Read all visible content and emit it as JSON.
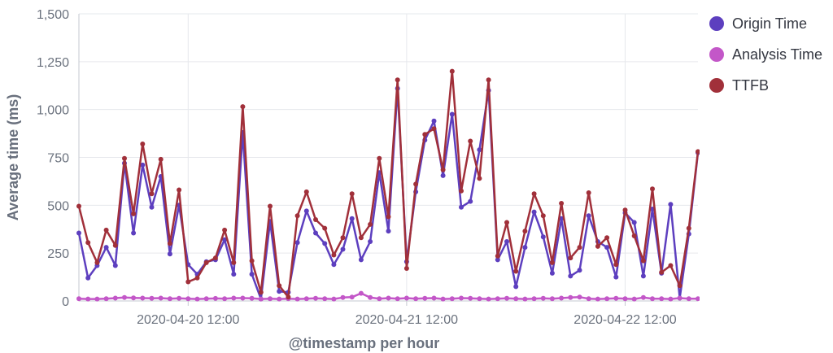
{
  "chart_data": {
    "type": "line",
    "xlabel": "@timestamp per hour",
    "ylabel": "Average time (ms)",
    "ylim": [
      0,
      1500
    ],
    "yticks": [
      0,
      250,
      500,
      750,
      1000,
      1250,
      1500
    ],
    "ytick_labels": [
      "0",
      "250",
      "500",
      "750",
      "1,000",
      "1,250",
      "1,500"
    ],
    "xrange": [
      0,
      85
    ],
    "xticks": [
      {
        "x": 15,
        "label": "2020-04-20 12:00"
      },
      {
        "x": 45,
        "label": "2020-04-21 12:00"
      },
      {
        "x": 75,
        "label": "2020-04-22 12:00"
      }
    ],
    "legend_position": "right",
    "series": [
      {
        "name": "Origin Time",
        "color": "#5d3fbf",
        "values": [
          355,
          120,
          185,
          280,
          185,
          720,
          355,
          710,
          490,
          650,
          245,
          500,
          190,
          140,
          205,
          215,
          320,
          140,
          880,
          140,
          10,
          415,
          50,
          45,
          305,
          470,
          355,
          300,
          190,
          270,
          430,
          215,
          310,
          670,
          365,
          1110,
          205,
          570,
          840,
          940,
          655,
          975,
          490,
          520,
          790,
          1100,
          215,
          310,
          75,
          280,
          465,
          335,
          145,
          430,
          130,
          160,
          445,
          310,
          280,
          125,
          460,
          410,
          130,
          480,
          145,
          505,
          15,
          350,
          775
        ]
      },
      {
        "name": "Analysis Time",
        "color": "#c357c8",
        "values": [
          12,
          10,
          10,
          12,
          15,
          18,
          16,
          15,
          14,
          15,
          12,
          14,
          12,
          10,
          12,
          13,
          12,
          15,
          15,
          14,
          10,
          12,
          10,
          12,
          10,
          12,
          14,
          12,
          10,
          18,
          20,
          40,
          18,
          12,
          15,
          12,
          15,
          12,
          14,
          15,
          10,
          12,
          15,
          14,
          12,
          10,
          12,
          14,
          12,
          10,
          12,
          14,
          12,
          15,
          18,
          20,
          12,
          10,
          12,
          14,
          12,
          10,
          18,
          12,
          12,
          10,
          15,
          12,
          12
        ]
      },
      {
        "name": "TTFB",
        "color": "#a1303a",
        "values": [
          495,
          305,
          200,
          370,
          290,
          745,
          455,
          820,
          560,
          740,
          300,
          580,
          100,
          120,
          200,
          225,
          370,
          200,
          1015,
          210,
          45,
          495,
          80,
          20,
          445,
          570,
          425,
          380,
          240,
          330,
          560,
          330,
          400,
          745,
          440,
          1155,
          170,
          610,
          870,
          900,
          685,
          1200,
          575,
          835,
          640,
          1155,
          235,
          410,
          155,
          365,
          560,
          445,
          200,
          510,
          225,
          280,
          565,
          285,
          330,
          190,
          475,
          340,
          210,
          585,
          150,
          185,
          80,
          380,
          780
        ]
      }
    ]
  }
}
